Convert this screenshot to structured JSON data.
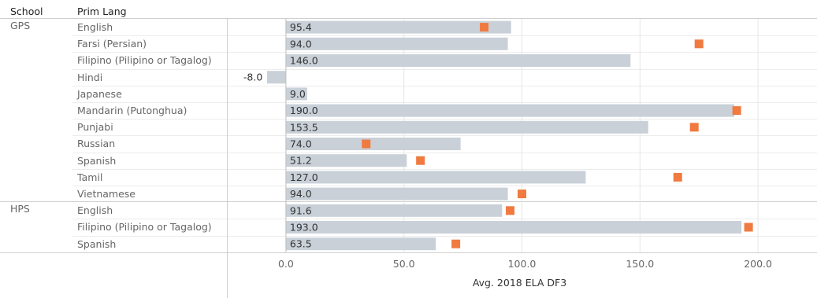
{
  "headers": {
    "school": "School",
    "prim_lang": "Prim Lang"
  },
  "chart_data": {
    "type": "bar",
    "xlabel": "Avg. 2018 ELA DF3",
    "xlim": [
      -25,
      225
    ],
    "ticks": [
      0,
      50,
      100,
      150,
      200
    ],
    "tick_labels": [
      "0.0",
      "50.0",
      "100.0",
      "150.0",
      "200.0"
    ],
    "bar_color": "#c9d0d8",
    "marker_color": "#f07a3f",
    "grid": true,
    "groups": [
      {
        "school": "GPS",
        "rows": [
          {
            "lang": "English",
            "value": 95.4,
            "label": "95.4",
            "marker": 84
          },
          {
            "lang": "Farsi (Persian)",
            "value": 94.0,
            "label": "94.0",
            "marker": 175
          },
          {
            "lang": "Filipino (Pilipino or Tagalog)",
            "value": 146.0,
            "label": "146.0",
            "marker": null
          },
          {
            "lang": "Hindi",
            "value": -8.0,
            "label": "-8.0",
            "marker": null
          },
          {
            "lang": "Japanese",
            "value": 9.0,
            "label": "9.0",
            "marker": null
          },
          {
            "lang": "Mandarin (Putonghua)",
            "value": 190.0,
            "label": "190.0",
            "marker": 191
          },
          {
            "lang": "Punjabi",
            "value": 153.5,
            "label": "153.5",
            "marker": 173
          },
          {
            "lang": "Russian",
            "value": 74.0,
            "label": "74.0",
            "marker": 34
          },
          {
            "lang": "Spanish",
            "value": 51.2,
            "label": "51.2",
            "marker": 57
          },
          {
            "lang": "Tamil",
            "value": 127.0,
            "label": "127.0",
            "marker": 166
          },
          {
            "lang": "Vietnamese",
            "value": 94.0,
            "label": "94.0",
            "marker": 100
          }
        ]
      },
      {
        "school": "HPS",
        "rows": [
          {
            "lang": "English",
            "value": 91.6,
            "label": "91.6",
            "marker": 95
          },
          {
            "lang": "Filipino (Pilipino or Tagalog)",
            "value": 193.0,
            "label": "193.0",
            "marker": 196
          },
          {
            "lang": "Spanish",
            "value": 63.5,
            "label": "63.5",
            "marker": 72
          }
        ]
      }
    ]
  }
}
